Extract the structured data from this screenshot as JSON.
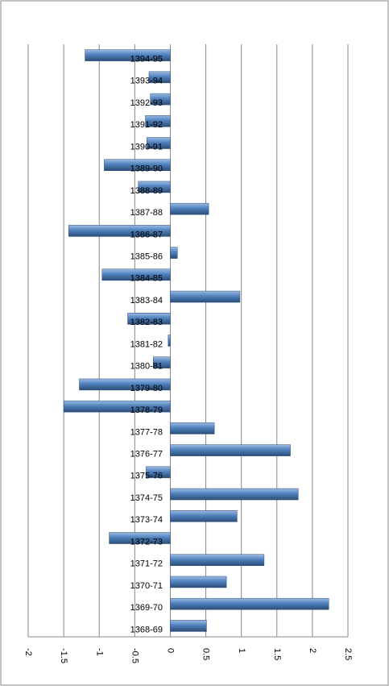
{
  "chart_data": {
    "type": "bar",
    "orientation": "horizontal",
    "categories": [
      "1368-69",
      "1369-70",
      "1370-71",
      "1371-72",
      "1372-73",
      "1373-74",
      "1374-75",
      "1375-76",
      "1376-77",
      "1377-78",
      "1378-79",
      "1379-80",
      "1380-81",
      "1381-82",
      "1382-83",
      "1383-84",
      "1384-85",
      "1385-86",
      "1386-87",
      "1387-88",
      "1388-89",
      "1389-90",
      "1390-91",
      "1391-92",
      "1392-93",
      "1393-94",
      "1394-95"
    ],
    "values": [
      0.51,
      2.23,
      0.79,
      1.32,
      -0.86,
      0.94,
      1.8,
      -0.34,
      1.69,
      0.62,
      -1.5,
      -1.28,
      -0.24,
      -0.03,
      -0.6,
      0.98,
      -0.96,
      0.1,
      -1.43,
      0.54,
      -0.45,
      -0.93,
      -0.33,
      -0.35,
      -0.28,
      -0.3,
      -1.2
    ],
    "color": "#4f81bd",
    "xlim": [
      -2,
      2.5
    ],
    "xticks": [
      -2,
      -1.5,
      -1,
      -0.5,
      0,
      0.5,
      1,
      1.5,
      2,
      2.5
    ],
    "grid": true
  }
}
